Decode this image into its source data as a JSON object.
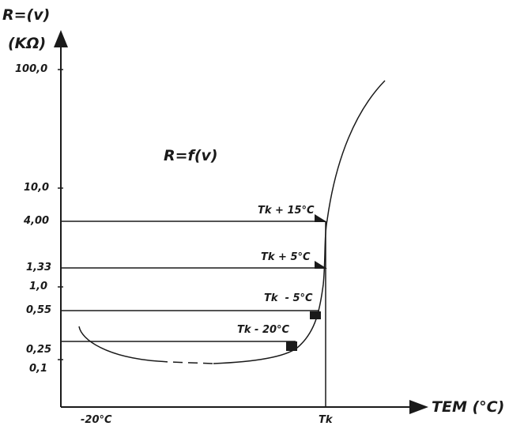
{
  "y_axis": {
    "title_line1": "R=(v)",
    "title_line2": "(KΩ)",
    "ticks": [
      "100,0",
      "10,0",
      "4,00",
      "1,33",
      "1,0",
      "0,55",
      "0,25",
      "0,1"
    ]
  },
  "x_axis": {
    "title": "TEM (°C)",
    "ticks": [
      "-20°C",
      "Tk"
    ]
  },
  "function_label": "R=f(v)",
  "annotations": [
    "Tk + 15°C",
    "Tk + 5°C",
    "Tk  - 5°C",
    "Tk - 20°C"
  ],
  "colors": {
    "line": "#1a1a1a",
    "background": "#ffffff"
  }
}
